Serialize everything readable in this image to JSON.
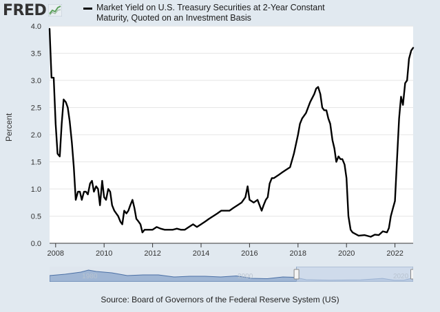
{
  "header": {
    "logo_text": "FRED",
    "legend_label": "Market Yield on U.S. Treasury Securities at 2-Year Constant Maturity, Quoted on an Investment Basis"
  },
  "footer": {
    "source": "Source: Board of Governors of the Federal Reserve System (US)"
  },
  "navigator": {
    "tick_labels": [
      "1980",
      "2000",
      "2020"
    ],
    "selected_range": [
      2007.75,
      2022.75
    ]
  },
  "colors": {
    "background": "#e1e9f0",
    "plot_background": "#ffffff",
    "series_line": "#000000",
    "grid": "#e6e6e6",
    "navigator_fill": "#6b8ebf",
    "navigator_selection": "#c6d6ea"
  },
  "chart_data": {
    "type": "line",
    "title": "",
    "xlabel": "",
    "ylabel": "Percent",
    "xlim": [
      2007.75,
      2022.75
    ],
    "ylim": [
      0,
      4
    ],
    "grid": true,
    "legend": "top",
    "x_ticks": [
      "2008",
      "2010",
      "2012",
      "2014",
      "2016",
      "2018",
      "2020",
      "2022"
    ],
    "y_ticks": [
      "0.0",
      "0.5",
      "1.0",
      "1.5",
      "2.0",
      "2.5",
      "3.0",
      "3.5",
      "4.0"
    ],
    "series": [
      {
        "name": "Market Yield on U.S. Treasury Securities at 2-Year Constant Maturity, Quoted on an Investment Basis",
        "x": [
          2007.75,
          2007.83,
          2007.92,
          2008.0,
          2008.08,
          2008.17,
          2008.25,
          2008.33,
          2008.42,
          2008.5,
          2008.58,
          2008.67,
          2008.75,
          2008.83,
          2008.92,
          2009.0,
          2009.08,
          2009.17,
          2009.25,
          2009.33,
          2009.42,
          2009.5,
          2009.58,
          2009.67,
          2009.75,
          2009.83,
          2009.92,
          2010.0,
          2010.08,
          2010.17,
          2010.25,
          2010.33,
          2010.42,
          2010.5,
          2010.58,
          2010.67,
          2010.75,
          2010.83,
          2010.92,
          2011.0,
          2011.08,
          2011.17,
          2011.25,
          2011.33,
          2011.42,
          2011.5,
          2011.58,
          2011.67,
          2011.75,
          2011.83,
          2012.0,
          2012.17,
          2012.33,
          2012.5,
          2012.67,
          2012.83,
          2013.0,
          2013.17,
          2013.33,
          2013.5,
          2013.67,
          2013.83,
          2014.0,
          2014.17,
          2014.33,
          2014.5,
          2014.67,
          2014.83,
          2015.0,
          2015.17,
          2015.33,
          2015.5,
          2015.67,
          2015.83,
          2015.92,
          2016.0,
          2016.17,
          2016.33,
          2016.5,
          2016.58,
          2016.67,
          2016.75,
          2016.83,
          2016.92,
          2017.0,
          2017.17,
          2017.33,
          2017.5,
          2017.67,
          2017.83,
          2018.0,
          2018.08,
          2018.17,
          2018.33,
          2018.5,
          2018.67,
          2018.75,
          2018.83,
          2018.92,
          2019.0,
          2019.08,
          2019.17,
          2019.25,
          2019.33,
          2019.42,
          2019.5,
          2019.58,
          2019.67,
          2019.75,
          2019.83,
          2019.92,
          2020.0,
          2020.08,
          2020.17,
          2020.25,
          2020.5,
          2020.75,
          2021.0,
          2021.17,
          2021.33,
          2021.5,
          2021.67,
          2021.75,
          2021.83,
          2021.92,
          2022.0,
          2022.08,
          2022.17,
          2022.25,
          2022.33,
          2022.42,
          2022.5,
          2022.58,
          2022.67,
          2022.75
        ],
        "values": [
          3.95,
          3.05,
          3.05,
          2.2,
          1.65,
          1.6,
          2.2,
          2.65,
          2.6,
          2.5,
          2.25,
          1.85,
          1.4,
          0.8,
          0.95,
          0.95,
          0.8,
          0.95,
          0.95,
          0.9,
          1.1,
          1.15,
          0.95,
          1.05,
          1.0,
          0.7,
          1.15,
          0.85,
          0.8,
          1.0,
          0.95,
          0.7,
          0.6,
          0.55,
          0.5,
          0.4,
          0.35,
          0.6,
          0.55,
          0.6,
          0.7,
          0.8,
          0.65,
          0.45,
          0.4,
          0.35,
          0.2,
          0.25,
          0.25,
          0.25,
          0.25,
          0.3,
          0.27,
          0.25,
          0.25,
          0.25,
          0.27,
          0.25,
          0.25,
          0.3,
          0.35,
          0.3,
          0.35,
          0.4,
          0.45,
          0.5,
          0.55,
          0.6,
          0.6,
          0.6,
          0.65,
          0.7,
          0.75,
          0.85,
          1.05,
          0.8,
          0.75,
          0.8,
          0.6,
          0.7,
          0.8,
          0.85,
          1.1,
          1.2,
          1.2,
          1.25,
          1.3,
          1.35,
          1.4,
          1.65,
          2.0,
          2.2,
          2.3,
          2.4,
          2.6,
          2.75,
          2.85,
          2.88,
          2.75,
          2.5,
          2.45,
          2.45,
          2.3,
          2.2,
          1.9,
          1.75,
          1.5,
          1.6,
          1.55,
          1.55,
          1.45,
          1.2,
          0.5,
          0.25,
          0.2,
          0.14,
          0.15,
          0.12,
          0.16,
          0.15,
          0.22,
          0.2,
          0.28,
          0.5,
          0.65,
          0.78,
          1.5,
          2.3,
          2.7,
          2.55,
          2.95,
          3.0,
          3.4,
          3.55,
          3.6
        ]
      }
    ]
  }
}
